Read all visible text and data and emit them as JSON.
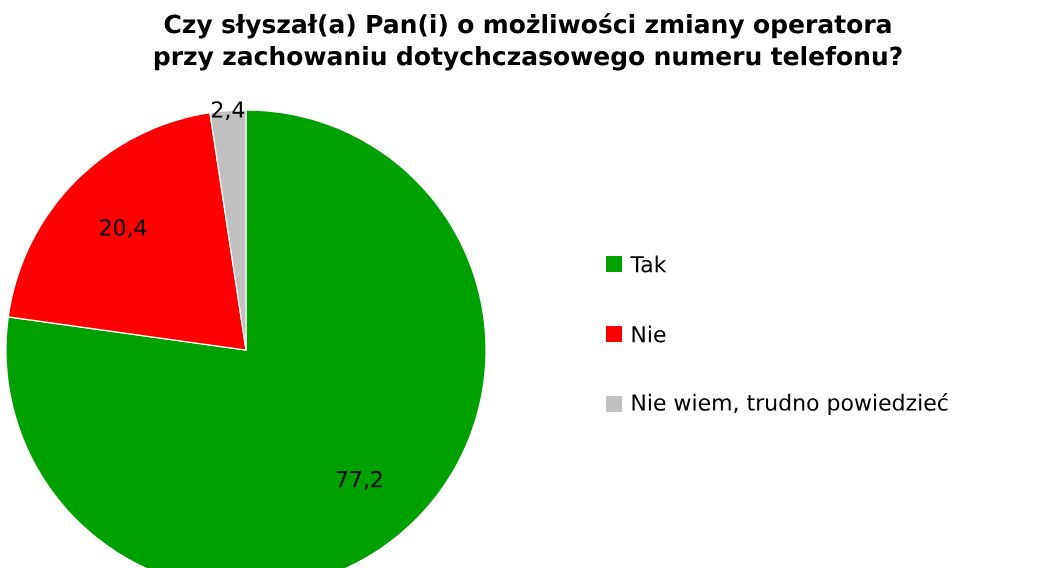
{
  "chart_data": {
    "type": "pie",
    "title": "Czy słyszał(a) Pan(i) o możliwości zmiany operatora przy zachowaniu dotychczasowego numeru telefonu?",
    "categories": [
      "Tak",
      "Nie",
      "Nie wiem, trudno powiedzieć"
    ],
    "values": [
      77.2,
      20.4,
      2.4
    ],
    "colors": [
      "#00a000",
      "#ff0000",
      "#c0c0c0"
    ],
    "value_labels": [
      "77,2",
      "20,4",
      "2,4"
    ],
    "legend": "right"
  }
}
